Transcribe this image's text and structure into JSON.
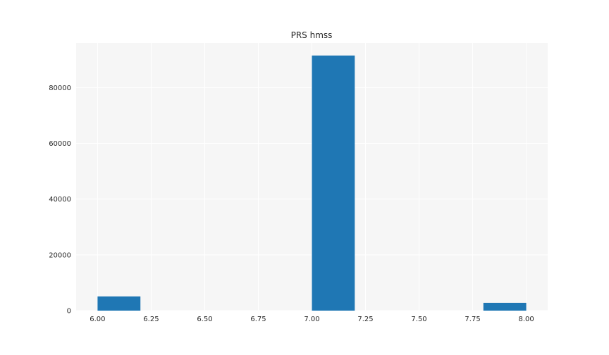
{
  "chart_data": {
    "type": "bar",
    "title": "PRS hmss",
    "xlabel": "",
    "ylabel": "",
    "bins": [
      {
        "x0": 6.0,
        "x1": 6.2,
        "count": 5100
      },
      {
        "x0": 6.2,
        "x1": 6.4,
        "count": 0
      },
      {
        "x0": 6.4,
        "x1": 6.6,
        "count": 0
      },
      {
        "x0": 6.6,
        "x1": 6.8,
        "count": 0
      },
      {
        "x0": 6.8,
        "x1": 7.0,
        "count": 0
      },
      {
        "x0": 7.0,
        "x1": 7.2,
        "count": 91500
      },
      {
        "x0": 7.2,
        "x1": 7.4,
        "count": 0
      },
      {
        "x0": 7.4,
        "x1": 7.6,
        "count": 0
      },
      {
        "x0": 7.6,
        "x1": 7.8,
        "count": 0
      },
      {
        "x0": 7.8,
        "x1": 8.0,
        "count": 2800
      }
    ],
    "xlim": [
      5.9,
      8.1
    ],
    "ylim": [
      0,
      96000
    ],
    "xticks": [
      "6.00",
      "6.25",
      "6.50",
      "6.75",
      "7.00",
      "7.25",
      "7.50",
      "7.75",
      "8.00"
    ],
    "yticks": [
      "0",
      "20000",
      "40000",
      "60000",
      "80000"
    ],
    "grid": true,
    "bar_color": "#1f77b4",
    "plot_background": "#f6f6f6",
    "grid_color": "#ffffff"
  }
}
